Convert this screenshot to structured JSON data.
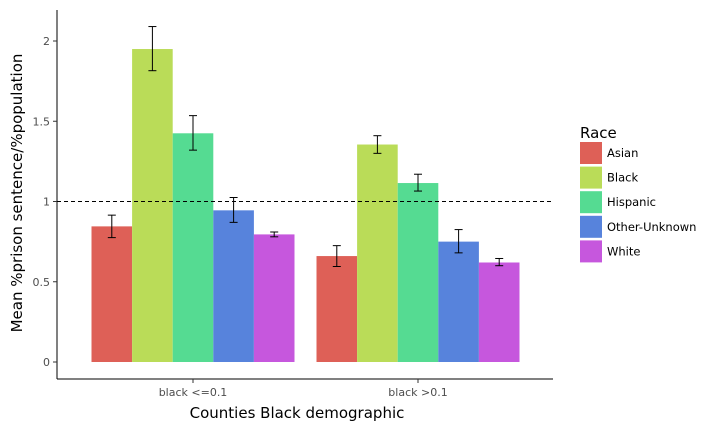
{
  "chart_data": {
    "type": "bar",
    "xlabel": "Counties Black  demographic",
    "ylabel": "Mean %prison sentence/%population",
    "categories": [
      "black <=0.1",
      "black >0.1"
    ],
    "ylim": [
      -0.1,
      2.2
    ],
    "yticks": [
      0,
      0.5,
      1,
      1.5,
      2
    ],
    "ytick_labels": [
      "0",
      "0.5",
      "1",
      "1.5",
      "2"
    ],
    "reference_line": 1.0,
    "legend": {
      "title": "Race",
      "position": "right"
    },
    "series": [
      {
        "name": "Asian",
        "color": "#DE6057",
        "values": [
          0.845,
          0.66
        ],
        "err_low": [
          0.775,
          0.595
        ],
        "err_high": [
          0.915,
          0.725
        ]
      },
      {
        "name": "Black",
        "color": "#BADC58",
        "values": [
          1.95,
          1.355
        ],
        "err_low": [
          1.815,
          1.3
        ],
        "err_high": [
          2.09,
          1.41
        ]
      },
      {
        "name": "Hispanic",
        "color": "#55DB92",
        "values": [
          1.425,
          1.115
        ],
        "err_low": [
          1.32,
          1.065
        ],
        "err_high": [
          1.535,
          1.17
        ]
      },
      {
        "name": "Other-Unknown",
        "color": "#5783DC",
        "values": [
          0.945,
          0.75
        ],
        "err_low": [
          0.87,
          0.68
        ],
        "err_high": [
          1.025,
          0.825
        ]
      },
      {
        "name": "White",
        "color": "#C657DD",
        "values": [
          0.795,
          0.62
        ],
        "err_low": [
          0.78,
          0.6
        ],
        "err_high": [
          0.81,
          0.645
        ]
      }
    ]
  }
}
